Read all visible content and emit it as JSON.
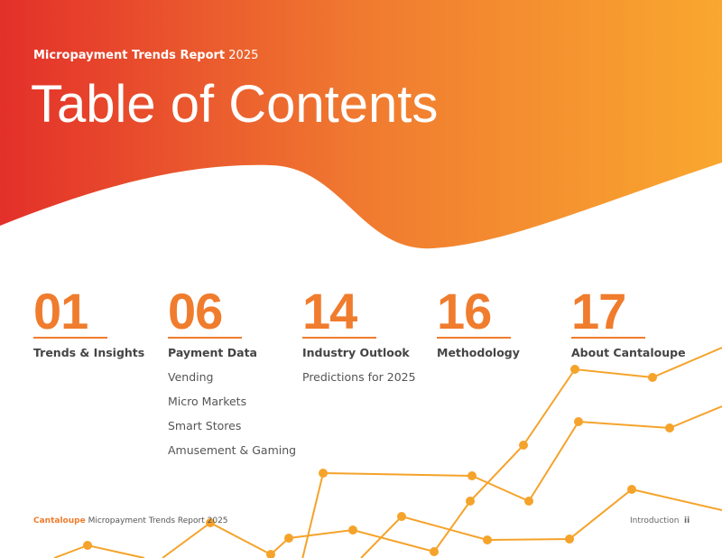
{
  "header": {
    "kicker_bold": "Micropayment Trends Report",
    "kicker_year": "2025",
    "title": "Table of Contents"
  },
  "toc": [
    {
      "page": "01",
      "title": "Trends & Insights"
    },
    {
      "page": "06",
      "title": "Payment Data",
      "items": [
        "Vending",
        "Micro Markets",
        "Smart Stores",
        "Amusement & Gaming"
      ]
    },
    {
      "page": "14",
      "title": "Industry Outlook",
      "items": [
        "Predictions for 2025"
      ]
    },
    {
      "page": "16",
      "title": "Methodology"
    },
    {
      "page": "17",
      "title": "About Cantaloupe"
    }
  ],
  "footer": {
    "brand": "Cantaloupe",
    "text": "Micropayment Trends Report 2025",
    "section": "Introduction",
    "page": "ii"
  }
}
